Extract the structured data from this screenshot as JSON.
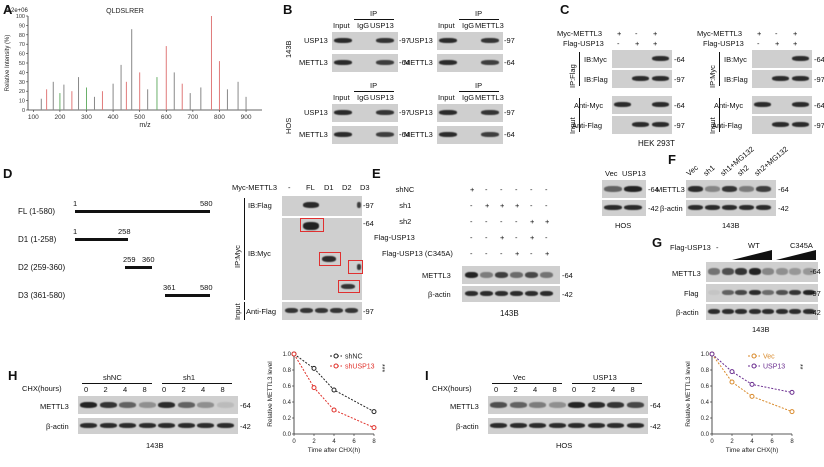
{
  "panels": {
    "A": {
      "label": "A",
      "chart_data": {
        "type": "bar",
        "title": "QLDSLRER",
        "ylabel": "Relative Intensity (%)",
        "xlabel": "m/z",
        "scale_label": "3.2e+06",
        "y_ticks": [
          "0",
          "10",
          "20",
          "30",
          "40",
          "50",
          "60",
          "70",
          "80",
          "90",
          "100"
        ],
        "x_ticks": [
          "100",
          "200",
          "300",
          "400",
          "500",
          "600",
          "700",
          "800",
          "900"
        ],
        "xlim": [
          80,
          960
        ],
        "ylim": [
          0,
          100
        ],
        "peaks": [
          {
            "x": 130,
            "y": 12,
            "color": "#888"
          },
          {
            "x": 150,
            "y": 22,
            "color": "#e07a7a"
          },
          {
            "x": 175,
            "y": 30,
            "color": "#888"
          },
          {
            "x": 200,
            "y": 18,
            "color": "#6ab06a"
          },
          {
            "x": 215,
            "y": 27,
            "color": "#888"
          },
          {
            "x": 245,
            "y": 20,
            "color": "#e07a7a"
          },
          {
            "x": 270,
            "y": 35,
            "color": "#888"
          },
          {
            "x": 300,
            "y": 24,
            "color": "#6ab06a"
          },
          {
            "x": 330,
            "y": 14,
            "color": "#888"
          },
          {
            "x": 360,
            "y": 20,
            "color": "#e07a7a"
          },
          {
            "x": 400,
            "y": 28,
            "color": "#888"
          },
          {
            "x": 430,
            "y": 48,
            "color": "#888"
          },
          {
            "x": 450,
            "y": 30,
            "color": "#e07a7a"
          },
          {
            "x": 470,
            "y": 86,
            "color": "#888"
          },
          {
            "x": 500,
            "y": 40,
            "color": "#e07a7a"
          },
          {
            "x": 530,
            "y": 22,
            "color": "#888"
          },
          {
            "x": 565,
            "y": 35,
            "color": "#6ab06a"
          },
          {
            "x": 600,
            "y": 68,
            "color": "#e07a7a"
          },
          {
            "x": 630,
            "y": 40,
            "color": "#888"
          },
          {
            "x": 660,
            "y": 28,
            "color": "#e07a7a"
          },
          {
            "x": 690,
            "y": 18,
            "color": "#888"
          },
          {
            "x": 730,
            "y": 24,
            "color": "#888"
          },
          {
            "x": 770,
            "y": 100,
            "color": "#e07a7a"
          },
          {
            "x": 800,
            "y": 52,
            "color": "#e07a7a"
          },
          {
            "x": 830,
            "y": 22,
            "color": "#888"
          },
          {
            "x": 870,
            "y": 30,
            "color": "#888"
          },
          {
            "x": 900,
            "y": 14,
            "color": "#888"
          }
        ]
      }
    },
    "B": {
      "label": "B",
      "ip": "IP",
      "input": "Input",
      "igg": "IgG",
      "usp13": "USP13",
      "mettl3": "METTL3",
      "cell1": "143B",
      "cell2": "HOS",
      "mw97": "97",
      "mw64": "64"
    },
    "C": {
      "label": "C",
      "myc_mettl3": "Myc-METTL3",
      "flag_usp13": "Flag-USP13",
      "left_myc": [
        "+",
        "-",
        "+"
      ],
      "left_flag": [
        "-",
        "+",
        "+"
      ],
      "right_myc": [
        "+",
        "-",
        "+"
      ],
      "right_flag": [
        "-",
        "+",
        "+"
      ],
      "ip_flag": "IP:Flag",
      "ip_myc": "IP:Myc",
      "ib_myc": "IB:Myc",
      "ib_flag": "IB:Flag",
      "input": "Input",
      "anti_myc": "Anti-Myc",
      "anti_flag": "Anti-Flag",
      "cell": "HEK 293T",
      "mw64": "64",
      "mw97": "97"
    },
    "D": {
      "label": "D",
      "constructs": [
        {
          "name": "FL (1-580)",
          "start": "1",
          "end": "580"
        },
        {
          "name": "D1 (1-258)",
          "start": "1",
          "end": "258"
        },
        {
          "name": "D2 (259-360)",
          "start": "259",
          "end": "360"
        },
        {
          "name": "D3 (361-580)",
          "start": "361",
          "end": "580"
        }
      ],
      "myc_mettl3": "Myc-METTL3",
      "lanes": [
        "-",
        "FL",
        "D1",
        "D2",
        "D3"
      ],
      "ib_flag": "IB:Flag",
      "ib_myc": "IB:Myc",
      "ip_myc": "IP:Myc",
      "input": "Input",
      "anti_flag": "Anti-Flag",
      "mw97": "97",
      "mw64": "64"
    },
    "E": {
      "label": "E",
      "rows": [
        {
          "name": "shNC",
          "vals": [
            "+",
            "-",
            "-",
            "-",
            "-",
            "-"
          ]
        },
        {
          "name": "sh1",
          "vals": [
            "-",
            "+",
            "+",
            "+",
            "-",
            "-"
          ]
        },
        {
          "name": "sh2",
          "vals": [
            "-",
            "-",
            "-",
            "-",
            "+",
            "+"
          ]
        },
        {
          "name": "Flag-USP13",
          "vals": [
            "-",
            "-",
            "+",
            "-",
            "+",
            "-"
          ]
        },
        {
          "name": "Flag-USP13 (C345A)",
          "vals": [
            "-",
            "-",
            "-",
            "+",
            "-",
            "+"
          ]
        }
      ],
      "mettl3": "METTL3",
      "actin": "β-actin",
      "cell": "143B",
      "mw64": "64",
      "mw42": "42"
    },
    "F": {
      "label": "F",
      "hos_lanes": [
        "Vec",
        "USP13"
      ],
      "hos_cell": "HOS",
      "lanes": [
        "Vec",
        "sh1",
        "sh1+MG132",
        "sh2",
        "sh2+MG132"
      ],
      "mettl3": "METTL3",
      "actin": "β-actin",
      "cell": "143B",
      "mw64": "64",
      "mw42": "42"
    },
    "G": {
      "label": "G",
      "flag_usp13": "Flag-USP13",
      "dash": "-",
      "wt": "WT",
      "c345a": "C345A",
      "mettl3": "METTL3",
      "flag": "Flag",
      "actin": "β-actin",
      "cell": "143B",
      "mw64": "64",
      "mw97": "97",
      "mw42": "42"
    },
    "H": {
      "label": "H",
      "chx": "CHX(hours)",
      "groups": [
        "shNC",
        "sh1"
      ],
      "times": [
        "0",
        "2",
        "4",
        "8",
        "0",
        "2",
        "4",
        "8"
      ],
      "mettl3": "METTL3",
      "actin": "β-actin",
      "cell": "143B",
      "mw64": "64",
      "mw42": "42",
      "chart_data": {
        "type": "line",
        "xlabel": "Time after CHX(h)",
        "ylabel": "Relative METTL3 level",
        "x": [
          0,
          2,
          4,
          8
        ],
        "xlim": [
          0,
          8
        ],
        "ylim": [
          0,
          1.0
        ],
        "x_ticks": [
          "0",
          "2",
          "4",
          "6",
          "8"
        ],
        "y_ticks": [
          "0.0",
          "0.2",
          "0.4",
          "0.6",
          "0.8",
          "1.0"
        ],
        "significance": "***",
        "series": [
          {
            "name": "shNC",
            "values": [
              1.0,
              0.82,
              0.55,
              0.28
            ],
            "color": "#222222",
            "dash": true
          },
          {
            "name": "shUSP13",
            "values": [
              1.0,
              0.58,
              0.3,
              0.08
            ],
            "color": "#e0302a",
            "dash": true
          }
        ]
      }
    },
    "I": {
      "label": "I",
      "chx": "CHX(hours)",
      "groups": [
        "Vec",
        "USP13"
      ],
      "times": [
        "0",
        "2",
        "4",
        "8",
        "0",
        "2",
        "4",
        "8"
      ],
      "mettl3": "METTL3",
      "actin": "β-actin",
      "cell": "HOS",
      "mw64": "64",
      "mw42": "42",
      "chart_data": {
        "type": "line",
        "xlabel": "Time after CHX(h)",
        "ylabel": "Relative METTL3 level",
        "x": [
          0,
          2,
          4,
          8
        ],
        "xlim": [
          0,
          8
        ],
        "ylim": [
          0,
          1.0
        ],
        "x_ticks": [
          "0",
          "2",
          "4",
          "6",
          "8"
        ],
        "y_ticks": [
          "0.0",
          "0.2",
          "0.4",
          "0.6",
          "0.8",
          "1.0"
        ],
        "significance": "**",
        "series": [
          {
            "name": "Vec",
            "values": [
              1.0,
              0.65,
              0.47,
              0.28
            ],
            "color": "#d98a2b",
            "dash": true
          },
          {
            "name": "USP13",
            "values": [
              1.0,
              0.78,
              0.62,
              0.52
            ],
            "color": "#6a2d8f",
            "dash": true
          }
        ]
      }
    }
  }
}
